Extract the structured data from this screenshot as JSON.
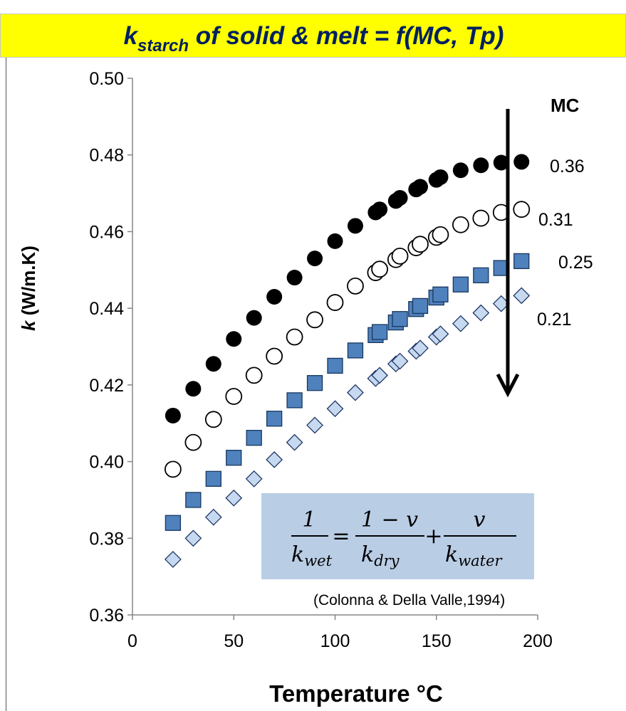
{
  "title": {
    "k": "k",
    "subscript": "starch",
    "rest": " of solid & melt = f(MC, Tp)"
  },
  "chart_data": {
    "type": "scatter",
    "xlabel": "Temperature °C",
    "ylabel_italic": "k",
    "ylabel_rest": " (W/m.K)",
    "xlim": [
      0,
      200
    ],
    "ylim": [
      0.36,
      0.5
    ],
    "x_ticks": [
      "0",
      "50",
      "100",
      "150",
      "200"
    ],
    "y_ticks": [
      "0.36",
      "0.38",
      "0.40",
      "0.42",
      "0.44",
      "0.46",
      "0.48",
      "0.50"
    ],
    "grid": false,
    "legend_title": "MC",
    "series": [
      {
        "name": "0.36",
        "marker": "filled-circle",
        "color": "#000000",
        "x": [
          20,
          30,
          40,
          50,
          60,
          70,
          80,
          90,
          100,
          110,
          120,
          122,
          130,
          132,
          140,
          142,
          150,
          152,
          162,
          172,
          182,
          192
        ],
        "y": [
          0.412,
          0.419,
          0.4255,
          0.432,
          0.4375,
          0.443,
          0.448,
          0.453,
          0.4575,
          0.4615,
          0.465,
          0.4658,
          0.468,
          0.4688,
          0.471,
          0.4717,
          0.4735,
          0.4742,
          0.476,
          0.4773,
          0.478,
          0.4782
        ]
      },
      {
        "name": "0.31",
        "marker": "open-circle",
        "color": "#000000",
        "x": [
          20,
          30,
          40,
          50,
          60,
          70,
          80,
          90,
          100,
          110,
          120,
          122,
          130,
          132,
          140,
          142,
          150,
          152,
          162,
          172,
          182,
          192
        ],
        "y": [
          0.398,
          0.405,
          0.411,
          0.417,
          0.4225,
          0.4275,
          0.4325,
          0.437,
          0.4415,
          0.4458,
          0.4493,
          0.4502,
          0.4527,
          0.4536,
          0.4558,
          0.4567,
          0.4585,
          0.4592,
          0.4618,
          0.4635,
          0.465,
          0.4658
        ]
      },
      {
        "name": "0.25",
        "marker": "square",
        "color": "#4f81bd",
        "x": [
          20,
          30,
          40,
          50,
          60,
          70,
          80,
          90,
          100,
          110,
          120,
          122,
          130,
          132,
          140,
          142,
          150,
          152,
          162,
          172,
          182,
          192
        ],
        "y": [
          0.384,
          0.39,
          0.3955,
          0.401,
          0.4062,
          0.4112,
          0.416,
          0.4205,
          0.425,
          0.429,
          0.433,
          0.4338,
          0.4363,
          0.4372,
          0.4398,
          0.4406,
          0.4428,
          0.4436,
          0.4462,
          0.4486,
          0.4505,
          0.4523
        ]
      },
      {
        "name": "0.21",
        "marker": "diamond",
        "color": "#c6d9f1",
        "x": [
          20,
          30,
          40,
          50,
          60,
          70,
          80,
          90,
          100,
          110,
          120,
          122,
          130,
          132,
          140,
          142,
          150,
          152,
          162,
          172,
          182,
          192
        ],
        "y": [
          0.3745,
          0.38,
          0.3855,
          0.3905,
          0.3955,
          0.4005,
          0.405,
          0.4095,
          0.4138,
          0.418,
          0.4217,
          0.4225,
          0.4255,
          0.4262,
          0.4288,
          0.4296,
          0.4325,
          0.4333,
          0.436,
          0.4388,
          0.4412,
          0.4433
        ]
      }
    ],
    "annotations": {
      "citation": "(Colonna & Della Valle,1994)",
      "formula": {
        "one": "1",
        "k": "k",
        "wet": "wet",
        "eq": "=",
        "numerator": "1 − v",
        "dry": "dry",
        "plus": "+",
        "v": "v",
        "water": "water"
      },
      "arrow": "decreasing MC"
    }
  }
}
